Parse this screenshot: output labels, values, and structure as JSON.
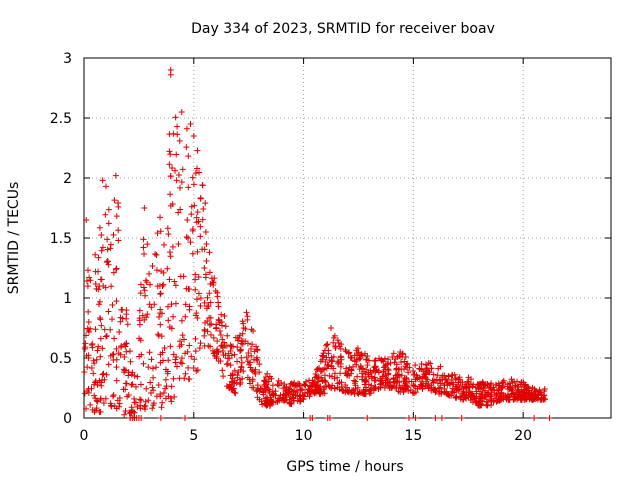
{
  "chart_data": {
    "type": "scatter",
    "title": "Day 334 of 2023, SRMTID for receiver boav",
    "xlabel": "GPS time / hours",
    "ylabel": "SRMTID / TECUs",
    "xlim": [
      0,
      24
    ],
    "ylim": [
      0,
      3
    ],
    "xticks": [
      0,
      5,
      10,
      15,
      20
    ],
    "xtick_labels": [
      "0",
      "5",
      "10",
      "15",
      "20"
    ],
    "yticks": [
      0,
      0.5,
      1,
      1.5,
      2,
      2.5,
      3
    ],
    "ytick_labels": [
      "0",
      "0.5",
      "1",
      "1.5",
      "2",
      "2.5",
      "3"
    ],
    "grid": true,
    "marker": "+",
    "color": "#e00000",
    "envelope": [
      [
        0.0,
        0.05,
        0.9
      ],
      [
        0.3,
        0.05,
        1.6
      ],
      [
        0.6,
        0.05,
        1.3
      ],
      [
        0.9,
        0.05,
        2.0
      ],
      [
        1.2,
        0.1,
        1.7
      ],
      [
        1.5,
        0.05,
        2.0
      ],
      [
        1.8,
        0.0,
        1.2
      ],
      [
        2.1,
        0.0,
        0.6
      ],
      [
        2.4,
        0.0,
        0.3
      ],
      [
        2.7,
        0.05,
        1.7
      ],
      [
        3.0,
        0.05,
        1.3
      ],
      [
        3.3,
        0.05,
        1.6
      ],
      [
        3.6,
        0.1,
        1.8
      ],
      [
        3.9,
        0.1,
        2.4
      ],
      [
        4.2,
        0.2,
        2.55
      ],
      [
        4.5,
        0.3,
        2.5
      ],
      [
        4.8,
        0.3,
        2.4
      ],
      [
        5.1,
        0.3,
        2.35
      ],
      [
        5.4,
        0.6,
        2.0
      ],
      [
        5.7,
        0.6,
        1.5
      ],
      [
        6.0,
        0.5,
        1.1
      ],
      [
        6.3,
        0.3,
        0.9
      ],
      [
        6.6,
        0.25,
        0.7
      ],
      [
        6.9,
        0.2,
        0.75
      ],
      [
        7.2,
        0.3,
        0.8
      ],
      [
        7.5,
        0.3,
        0.9
      ],
      [
        7.8,
        0.2,
        0.7
      ],
      [
        8.1,
        0.1,
        0.4
      ],
      [
        8.5,
        0.1,
        0.35
      ],
      [
        9.0,
        0.15,
        0.3
      ],
      [
        9.5,
        0.1,
        0.3
      ],
      [
        10.0,
        0.15,
        0.3
      ],
      [
        10.5,
        0.2,
        0.35
      ],
      [
        11.0,
        0.2,
        0.6
      ],
      [
        11.5,
        0.25,
        0.7
      ],
      [
        12.0,
        0.2,
        0.55
      ],
      [
        12.5,
        0.2,
        0.6
      ],
      [
        13.0,
        0.2,
        0.5
      ],
      [
        13.5,
        0.25,
        0.5
      ],
      [
        14.0,
        0.25,
        0.55
      ],
      [
        14.5,
        0.2,
        0.55
      ],
      [
        15.0,
        0.2,
        0.45
      ],
      [
        15.5,
        0.25,
        0.45
      ],
      [
        16.0,
        0.2,
        0.5
      ],
      [
        16.5,
        0.2,
        0.4
      ],
      [
        17.0,
        0.15,
        0.35
      ],
      [
        17.5,
        0.15,
        0.35
      ],
      [
        18.0,
        0.1,
        0.3
      ],
      [
        18.5,
        0.1,
        0.3
      ],
      [
        19.0,
        0.15,
        0.3
      ],
      [
        19.5,
        0.15,
        0.35
      ],
      [
        20.0,
        0.15,
        0.3
      ],
      [
        20.5,
        0.15,
        0.25
      ],
      [
        21.0,
        0.15,
        0.25
      ]
    ],
    "outliers": [
      [
        3.95,
        2.9
      ],
      [
        3.95,
        2.86
      ],
      [
        4.45,
        2.55
      ],
      [
        4.85,
        2.45
      ],
      [
        5.0,
        2.35
      ],
      [
        0.85,
        1.98
      ],
      [
        1.0,
        1.93
      ],
      [
        1.45,
        2.02
      ],
      [
        2.75,
        1.75
      ],
      [
        0.1,
        1.65
      ],
      [
        5.55,
        1.55
      ],
      [
        6.4,
        0.85
      ],
      [
        7.4,
        0.88
      ],
      [
        11.25,
        0.75
      ],
      [
        14.4,
        0.55
      ]
    ],
    "zero_points": [
      2.1,
      2.2,
      2.3,
      2.4,
      2.5,
      2.6,
      3.5,
      4.6,
      10.3,
      10.4,
      11.1,
      11.2,
      12.9,
      14.8,
      15.1,
      16.0,
      16.3,
      17.2,
      20.5,
      21.2
    ],
    "n_points": 1600
  }
}
